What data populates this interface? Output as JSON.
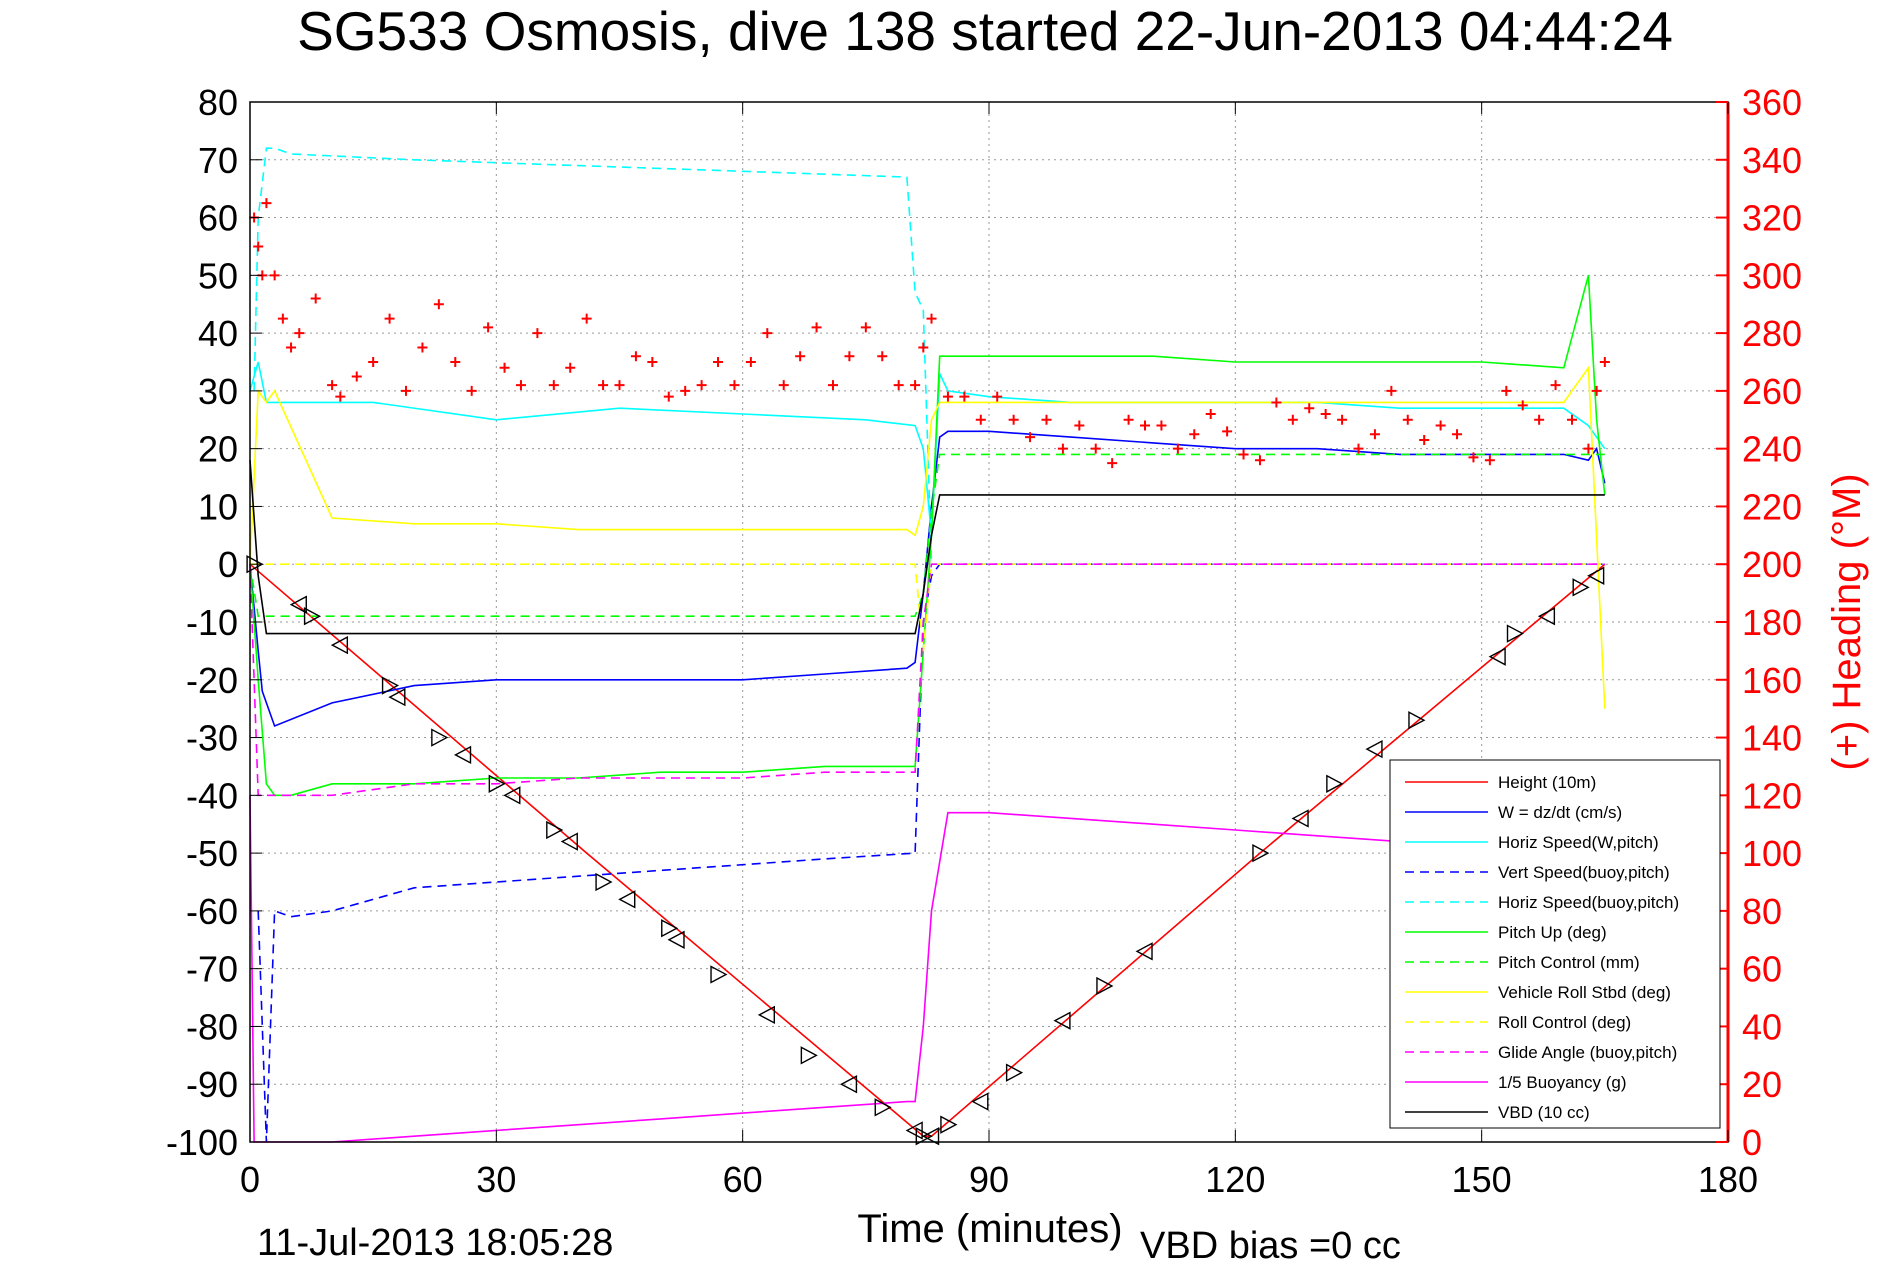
{
  "chart_data": {
    "type": "line",
    "title": "SG533 Osmosis, dive 138 started 22-Jun-2013 04:44:24",
    "xlabel": "Time (minutes)",
    "ylabel_right": "(+) Heading (°M)",
    "footer_left": "11-Jul-2013 18:05:28",
    "footer_right": "VBD bias =0 cc",
    "xlim": [
      0,
      180
    ],
    "ylim": [
      -100,
      80
    ],
    "ylim_right": [
      0,
      360
    ],
    "x_ticks": [
      0,
      30,
      60,
      90,
      120,
      150,
      180
    ],
    "y_ticks": [
      80,
      70,
      60,
      50,
      40,
      30,
      20,
      10,
      0,
      -10,
      -20,
      -30,
      -40,
      -50,
      -60,
      -70,
      -80,
      -90,
      -100
    ],
    "y_ticks_right": [
      360,
      340,
      320,
      300,
      280,
      260,
      240,
      220,
      200,
      180,
      160,
      140,
      120,
      100,
      80,
      60,
      40,
      20,
      0
    ],
    "grid": true,
    "legend_position": "bottom-right",
    "colors": {
      "height": "#ff0000",
      "w": "#0000ff",
      "horiz_w": "#00ffff",
      "vert_buoy": "#0000ff",
      "horiz_buoy": "#00ffff",
      "pitch_up": "#00ff00",
      "pitch_ctrl": "#00ff00",
      "roll": "#ffff00",
      "roll_ctrl": "#ffff00",
      "glide": "#ff00ff",
      "buoyancy": "#ff00ff",
      "vbd": "#000000",
      "heading": "#ff0000",
      "right_axis": "#ff0000"
    },
    "series": [
      {
        "key": "height",
        "name": "Height (10m)",
        "style": "solid",
        "x": [
          0,
          41,
          82,
          83,
          123,
          165
        ],
        "y": [
          0,
          -50,
          -99,
          -99,
          -50,
          0
        ]
      },
      {
        "key": "w",
        "name": "W = dz/dt (cm/s)",
        "style": "solid",
        "x": [
          0,
          1,
          1.5,
          3,
          10,
          20,
          30,
          40,
          50,
          60,
          70,
          80,
          81,
          82,
          83,
          84,
          85,
          90,
          100,
          110,
          120,
          130,
          140,
          150,
          160,
          163,
          164,
          165
        ],
        "y": [
          0,
          -15,
          -22,
          -28,
          -24,
          -21,
          -20,
          -20,
          -20,
          -20,
          -19,
          -18,
          -17,
          -5,
          10,
          22,
          23,
          23,
          22,
          21,
          20,
          20,
          19,
          19,
          19,
          18,
          20,
          14
        ]
      },
      {
        "key": "horiz_w",
        "name": "Horiz Speed(W,pitch)",
        "style": "solid",
        "x": [
          0,
          1,
          2,
          5,
          15,
          30,
          45,
          60,
          75,
          81,
          82,
          83,
          84,
          85,
          90,
          100,
          110,
          120,
          130,
          140,
          150,
          160,
          163,
          165
        ],
        "y": [
          30,
          35,
          28,
          28,
          28,
          25,
          27,
          26,
          25,
          24,
          20,
          5,
          33,
          30,
          29,
          28,
          28,
          28,
          28,
          27,
          27,
          27,
          24,
          20
        ]
      },
      {
        "key": "vert_buoy",
        "name": "Vert Speed(buoy,pitch)",
        "style": "dashed",
        "x": [
          1,
          2,
          3,
          5,
          10,
          20,
          30,
          40,
          50,
          60,
          70,
          81,
          82,
          83,
          84,
          90,
          120,
          150,
          165
        ],
        "y": [
          -60,
          -100,
          -60,
          -61,
          -60,
          -56,
          -55,
          -54,
          -53,
          -52,
          -51,
          -50,
          -10,
          -2,
          0,
          0,
          0,
          0,
          0
        ]
      },
      {
        "key": "horiz_buoy",
        "name": "Horiz Speed(buoy,pitch)",
        "style": "dashed",
        "x": [
          0.5,
          1,
          2,
          3,
          5,
          20,
          40,
          60,
          80,
          81,
          82,
          83,
          84,
          90,
          120,
          150,
          165
        ],
        "y": [
          30,
          60,
          72,
          72,
          71,
          70,
          69,
          68,
          67,
          47,
          44,
          0,
          0,
          0,
          0,
          0,
          0
        ]
      },
      {
        "key": "pitch_up",
        "name": "Pitch Up (deg)",
        "style": "solid",
        "x": [
          0,
          1,
          2,
          3,
          5,
          10,
          20,
          30,
          40,
          50,
          60,
          70,
          81,
          82,
          83,
          84,
          85,
          90,
          100,
          110,
          120,
          130,
          140,
          150,
          160,
          163,
          164,
          165
        ],
        "y": [
          0,
          -20,
          -38,
          -40,
          -40,
          -38,
          -38,
          -37,
          -37,
          -36,
          -36,
          -35,
          -35,
          -15,
          5,
          36,
          36,
          36,
          36,
          36,
          35,
          35,
          35,
          35,
          34,
          50,
          25,
          12
        ]
      },
      {
        "key": "pitch_ctrl",
        "name": "Pitch Control (mm)",
        "style": "dashed",
        "x": [
          0,
          1,
          5,
          20,
          40,
          60,
          81,
          82,
          83,
          84,
          90,
          120,
          150,
          165
        ],
        "y": [
          0,
          -9,
          -9,
          -9,
          -9,
          -9,
          -9,
          -5,
          9,
          19,
          19,
          19,
          19,
          19
        ]
      },
      {
        "key": "roll",
        "name": "Vehicle Roll Stbd (deg)",
        "style": "solid",
        "x": [
          0,
          1,
          2,
          3,
          10,
          20,
          30,
          40,
          50,
          60,
          70,
          80,
          81,
          82,
          83,
          84,
          90,
          100,
          110,
          120,
          130,
          140,
          150,
          160,
          163,
          165
        ],
        "y": [
          0,
          30,
          28,
          30,
          8,
          7,
          7,
          6,
          6,
          6,
          6,
          6,
          5,
          10,
          25,
          28,
          28,
          28,
          28,
          28,
          28,
          28,
          28,
          28,
          34,
          -25
        ]
      },
      {
        "key": "roll_ctrl",
        "name": "Roll Control (deg)",
        "style": "dashed",
        "x": [
          0,
          1,
          5,
          20,
          40,
          60,
          81,
          82,
          83,
          84,
          90,
          120,
          150,
          165
        ],
        "y": [
          0,
          0,
          0,
          0,
          0,
          0,
          0,
          -15,
          0,
          0,
          0,
          0,
          0,
          0
        ]
      },
      {
        "key": "glide",
        "name": "Glide Angle (buoy,pitch)",
        "style": "dashed",
        "x": [
          0,
          1,
          2,
          5,
          10,
          20,
          30,
          40,
          50,
          60,
          70,
          81,
          82,
          83,
          84,
          90,
          120,
          150,
          165
        ],
        "y": [
          0,
          -40,
          -40,
          -40,
          -40,
          -38,
          -38,
          -37,
          -37,
          -37,
          -36,
          -36,
          -10,
          0,
          0,
          0,
          0,
          0,
          0
        ]
      },
      {
        "key": "buoyancy",
        "name": "1/5 Buoyancy (g)",
        "style": "solid",
        "x": [
          0,
          0.5,
          1,
          2,
          5,
          10,
          20,
          30,
          40,
          50,
          60,
          70,
          80,
          81,
          82,
          83,
          85,
          90,
          100,
          110,
          120,
          130,
          140,
          150,
          160,
          165
        ],
        "y": [
          -40,
          -100,
          -100,
          -100,
          -100,
          -100,
          -99,
          -98,
          -97,
          -96,
          -95,
          -94,
          -93,
          -93,
          -80,
          -60,
          -43,
          -43,
          -44,
          -45,
          -46,
          -47,
          -48,
          -48,
          -49,
          -49
        ]
      },
      {
        "key": "vbd",
        "name": "VBD (10 cc)",
        "style": "solid",
        "x": [
          0,
          1,
          2,
          10,
          40,
          81,
          82,
          83,
          84,
          85,
          90,
          120,
          150,
          165
        ],
        "y": [
          18,
          -2,
          -12,
          -12,
          -12,
          -12,
          -5,
          5,
          12,
          12,
          12,
          12,
          12,
          12
        ]
      },
      {
        "key": "heading",
        "style": "markers",
        "marker": "+",
        "x": [
          0.5,
          1,
          1.5,
          2,
          3,
          4,
          5,
          6,
          8,
          10,
          11,
          13,
          15,
          17,
          19,
          21,
          23,
          25,
          27,
          29,
          31,
          33,
          35,
          37,
          39,
          41,
          43,
          45,
          47,
          49,
          51,
          53,
          55,
          57,
          59,
          61,
          63,
          65,
          67,
          69,
          71,
          73,
          75,
          77,
          79,
          81,
          82,
          83,
          85,
          87,
          89,
          91,
          93,
          95,
          97,
          99,
          101,
          103,
          105,
          107,
          109,
          111,
          113,
          115,
          117,
          119,
          121,
          123,
          125,
          127,
          129,
          131,
          133,
          135,
          137,
          139,
          141,
          143,
          145,
          147,
          149,
          151,
          153,
          155,
          157,
          159,
          161,
          163,
          164,
          165
        ],
        "y": [
          320,
          310,
          300,
          325,
          300,
          285,
          275,
          280,
          292,
          262,
          258,
          265,
          270,
          285,
          260,
          275,
          290,
          270,
          260,
          282,
          268,
          262,
          280,
          262,
          268,
          285,
          262,
          262,
          272,
          270,
          258,
          260,
          262,
          270,
          262,
          270,
          280,
          262,
          272,
          282,
          262,
          272,
          282,
          272,
          262,
          262,
          275,
          285,
          258,
          258,
          250,
          258,
          250,
          244,
          250,
          240,
          248,
          240,
          235,
          250,
          248,
          248,
          240,
          245,
          252,
          246,
          238,
          236,
          256,
          250,
          254,
          252,
          250,
          240,
          245,
          260,
          250,
          243,
          248,
          245,
          237,
          236,
          260,
          255,
          250,
          262,
          250,
          240,
          260,
          270
        ]
      }
    ],
    "markers": {
      "name": "Height (10m)",
      "x": [
        0.5,
        6,
        7.5,
        11,
        17,
        18,
        23,
        26,
        30,
        32,
        37,
        39,
        43,
        46,
        51,
        52,
        57,
        63,
        68,
        73,
        77,
        81,
        82,
        83,
        85,
        89,
        93,
        99,
        104,
        109,
        123,
        128,
        132,
        137,
        142,
        152,
        154,
        158,
        162,
        164
      ],
      "y": [
        0,
        -7,
        -9,
        -14,
        -21,
        -23,
        -30,
        -33,
        -38,
        -40,
        -46,
        -48,
        -55,
        -58,
        -63,
        -65,
        -71,
        -78,
        -85,
        -90,
        -94,
        -98,
        -99,
        -99,
        -97,
        -93,
        -88,
        -79,
        -73,
        -67,
        -50,
        -44,
        -38,
        -32,
        -27,
        -16,
        -12,
        -9,
        -4,
        -2
      ]
    },
    "vbd_bias": 0
  }
}
